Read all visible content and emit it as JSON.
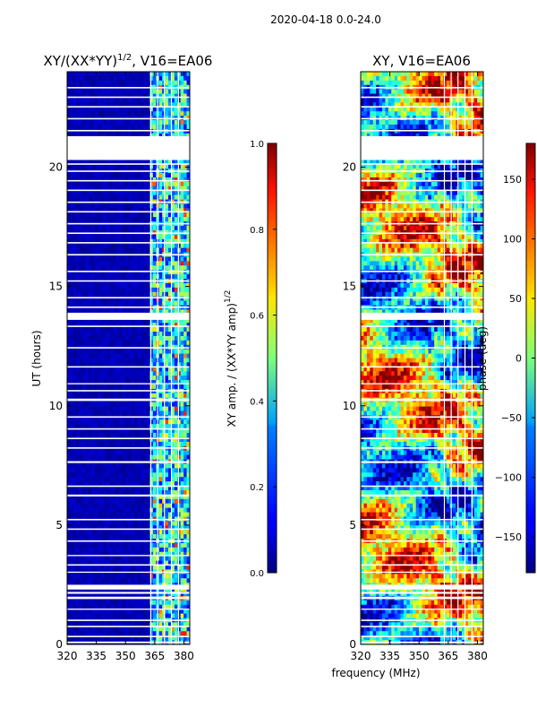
{
  "figure_title": "2020-04-18 0.0-24.0",
  "shared_xlabel": "frequency (MHz)",
  "chart_data": [
    {
      "type": "heatmap",
      "id": "amp",
      "title_main": "XY/(XX*YY)",
      "title_sup": "1/2",
      "title_tail": ", V16=EA06",
      "xlabel": "",
      "ylabel": "UT (hours)",
      "xlim": [
        320,
        383
      ],
      "ylim": [
        0,
        24
      ],
      "xticks": [
        320,
        335,
        350,
        365,
        380
      ],
      "yticks": [
        0,
        5,
        10,
        15,
        20
      ],
      "colorbar": {
        "label_main": "XY amp. / (XX*YY amp)",
        "label_sup": "1/2",
        "range": [
          0.0,
          1.0
        ],
        "ticks": [
          0.0,
          0.2,
          0.4,
          0.6,
          0.8,
          1.0
        ],
        "tick_labels": [
          "0.0",
          "0.2",
          "0.4",
          "0.6",
          "0.8",
          "1.0"
        ]
      }
    },
    {
      "type": "heatmap",
      "id": "phase",
      "title_main": "XY, V16=EA06",
      "title_sup": "",
      "title_tail": "",
      "xlabel": "frequency (MHz)",
      "ylabel": "",
      "xlim": [
        320,
        383
      ],
      "ylim": [
        0,
        24
      ],
      "xticks": [
        320,
        335,
        350,
        365,
        380
      ],
      "yticks": [
        0,
        5,
        10,
        15,
        20
      ],
      "colorbar": {
        "label_main": "phase (deg)",
        "label_sup": "",
        "range": [
          -180,
          180
        ],
        "ticks": [
          -150,
          -100,
          -50,
          0,
          50,
          100,
          150
        ],
        "tick_labels": [
          "−150",
          "−100",
          "−50",
          "0",
          "50",
          "100",
          "150"
        ]
      }
    }
  ],
  "flagged_ut_gaps": [
    [
      0.05,
      0.12
    ],
    [
      0.3,
      0.36
    ],
    [
      0.72,
      0.78
    ],
    [
      0.98,
      1.04
    ],
    [
      1.45,
      1.5
    ],
    [
      1.9,
      2.0
    ],
    [
      2.12,
      2.2
    ],
    [
      2.3,
      2.5
    ],
    [
      3.0,
      3.05
    ],
    [
      3.3,
      3.36
    ],
    [
      3.7,
      3.75
    ],
    [
      4.3,
      4.36
    ],
    [
      4.8,
      4.86
    ],
    [
      5.2,
      5.26
    ],
    [
      6.2,
      6.28
    ],
    [
      6.6,
      6.66
    ],
    [
      7.6,
      7.68
    ],
    [
      8.2,
      8.26
    ],
    [
      8.6,
      8.66
    ],
    [
      9.0,
      9.06
    ],
    [
      9.5,
      9.56
    ],
    [
      10.2,
      10.3
    ],
    [
      10.6,
      10.66
    ],
    [
      10.9,
      10.95
    ],
    [
      11.6,
      11.66
    ],
    [
      12.4,
      12.46
    ],
    [
      13.3,
      13.36
    ],
    [
      13.6,
      13.9
    ],
    [
      14.1,
      14.16
    ],
    [
      14.5,
      14.56
    ],
    [
      15.2,
      15.26
    ],
    [
      15.6,
      15.66
    ],
    [
      16.3,
      16.36
    ],
    [
      16.8,
      16.86
    ],
    [
      17.2,
      17.26
    ],
    [
      17.6,
      17.66
    ],
    [
      18.1,
      18.16
    ],
    [
      18.5,
      18.56
    ],
    [
      19.0,
      19.06
    ],
    [
      19.4,
      19.46
    ],
    [
      19.8,
      19.86
    ],
    [
      20.1,
      20.16
    ],
    [
      20.3,
      21.3
    ],
    [
      21.5,
      21.56
    ],
    [
      22.0,
      22.06
    ],
    [
      22.5,
      22.56
    ],
    [
      22.9,
      22.96
    ],
    [
      23.3,
      23.36
    ]
  ],
  "flagged_channels_mhz": [
    363.0,
    366.5,
    370.0,
    373.6,
    377.2
  ]
}
